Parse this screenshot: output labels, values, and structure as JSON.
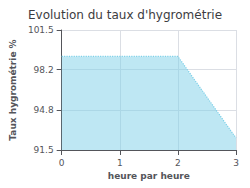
{
  "chart_data": {
    "type": "area",
    "title": "Evolution du taux d'hygrométrie",
    "xlabel": "heure par heure",
    "ylabel": "Taux hygrométrie %",
    "x": [
      0,
      2,
      3
    ],
    "values": [
      99.3,
      99.3,
      92.5
    ],
    "color": "#7dd0e8",
    "line_style": "dotted",
    "xlim": [
      0,
      3
    ],
    "xticks": [
      0,
      1,
      2,
      3
    ],
    "ylim": [
      91.5,
      101.5
    ],
    "yticks": [
      91.5,
      94.8,
      98.2,
      101.5
    ],
    "grid": true
  }
}
